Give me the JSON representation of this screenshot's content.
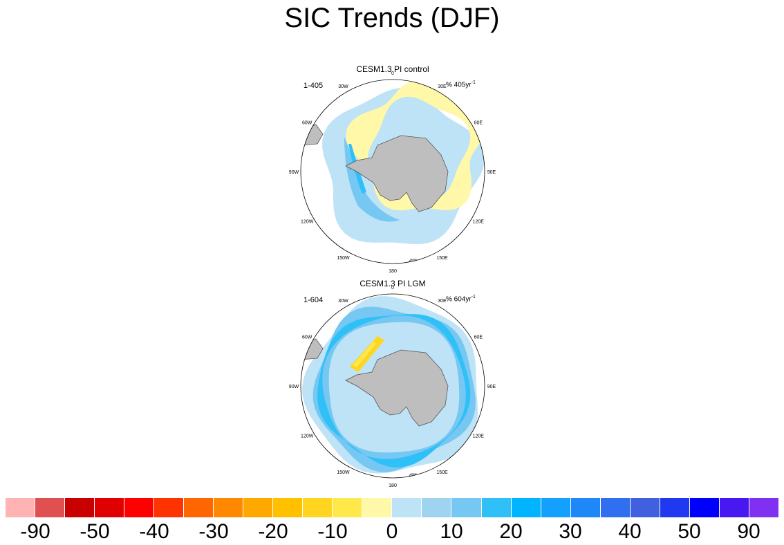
{
  "title": "SIC Trends (DJF)",
  "panels": [
    {
      "title": "CESM1.3 PI control",
      "label": "1-405",
      "units": "% 405yr",
      "units_exp": "-1",
      "longitudes": [
        "0",
        "30E",
        "60E",
        "90E",
        "120E",
        "150E",
        "180",
        "150W",
        "120W",
        "90W",
        "60W",
        "30W"
      ],
      "pattern": "control"
    },
    {
      "title": "CESM1.3 PI LGM",
      "label": "1-604",
      "units": "% 604yr",
      "units_exp": "-1",
      "longitudes": [
        "0",
        "30E",
        "60E",
        "90E",
        "120E",
        "150E",
        "180",
        "150W",
        "120W",
        "90W",
        "60W",
        "30W"
      ],
      "pattern": "lgm"
    }
  ],
  "colorbar": {
    "colors": [
      "#ffb3b3",
      "#e05050",
      "#c80000",
      "#e00000",
      "#ff0000",
      "#ff3300",
      "#ff6600",
      "#ff8800",
      "#ffa800",
      "#ffc000",
      "#ffd520",
      "#ffe84a",
      "#fff8a8",
      "#bfe3f6",
      "#9fd4f0",
      "#76c7f2",
      "#30c0f8",
      "#00b4ff",
      "#14a0ff",
      "#1e88f8",
      "#3070f0",
      "#4060e0",
      "#2038f0",
      "#0000ff",
      "#4818f0",
      "#8030f0"
    ],
    "labels": [
      "-90",
      "-50",
      "-40",
      "-30",
      "-20",
      "-10",
      "0",
      "10",
      "20",
      "30",
      "40",
      "50",
      "90"
    ]
  },
  "colors": {
    "land": "#bebebe",
    "coast": "#555555",
    "light_blue": "#bfe3f6",
    "mid_blue": "#9fd4f0",
    "blue": "#76c7f2",
    "deep_blue": "#30c0f8",
    "yellow": "#fff8a8",
    "orange_yellow": "#ffe84a",
    "gold": "#ffd520"
  }
}
